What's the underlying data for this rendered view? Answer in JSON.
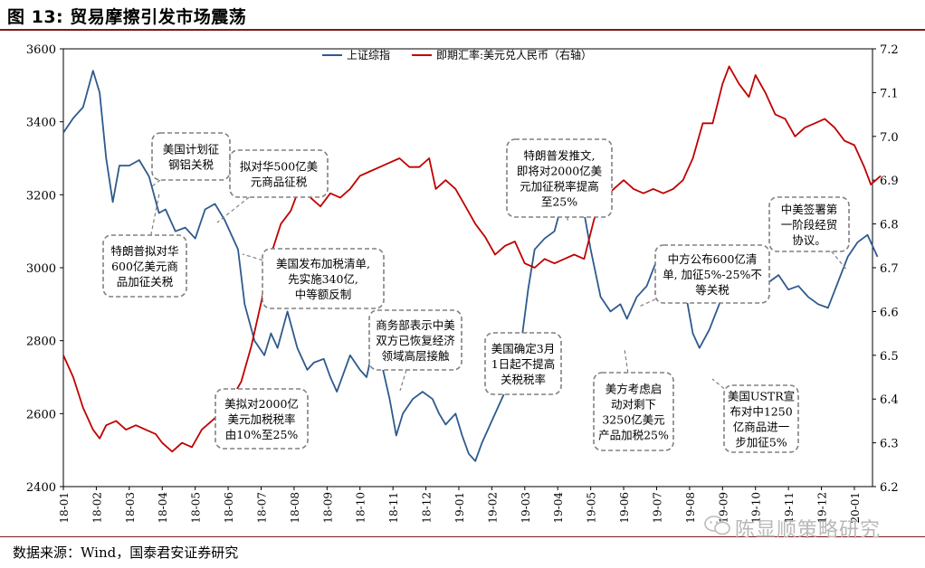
{
  "title": "图 13:  贸易摩擦引发市场震荡",
  "source": "数据来源：Wind，国泰君安证券研究",
  "watermark": "陈显顺策略研究",
  "chart_data": {
    "type": "line",
    "x_tick_labels": [
      "18-01",
      "18-02",
      "18-03",
      "18-04",
      "18-05",
      "18-06",
      "18-07",
      "18-08",
      "18-09",
      "18-10",
      "18-11",
      "18-12",
      "19-01",
      "19-02",
      "19-03",
      "19-04",
      "19-05",
      "19-06",
      "19-07",
      "19-08",
      "19-09",
      "19-10",
      "19-11",
      "19-12",
      "20-01"
    ],
    "left_axis": {
      "min": 2400,
      "max": 3600,
      "ticks": [
        2400,
        2600,
        2800,
        3000,
        3200,
        3400,
        3600
      ]
    },
    "right_axis": {
      "min": 6.2,
      "max": 7.2,
      "ticks": [
        "6.2",
        "6.3",
        "6.4",
        "6.5",
        "6.6",
        "6.7",
        "6.8",
        "6.9",
        "7.0",
        "7.1",
        "7.2"
      ]
    },
    "legend_position": "top",
    "series": [
      {
        "name": "上证综指",
        "axis": "left",
        "color": "#2e5a8c",
        "points": [
          [
            0,
            3370
          ],
          [
            0.3,
            3410
          ],
          [
            0.6,
            3440
          ],
          [
            0.9,
            3540
          ],
          [
            1.1,
            3480
          ],
          [
            1.3,
            3300
          ],
          [
            1.5,
            3180
          ],
          [
            1.7,
            3280
          ],
          [
            2.0,
            3280
          ],
          [
            2.3,
            3295
          ],
          [
            2.6,
            3250
          ],
          [
            2.9,
            3150
          ],
          [
            3.1,
            3160
          ],
          [
            3.4,
            3100
          ],
          [
            3.7,
            3110
          ],
          [
            4.0,
            3080
          ],
          [
            4.3,
            3160
          ],
          [
            4.6,
            3175
          ],
          [
            4.9,
            3130
          ],
          [
            5.1,
            3090
          ],
          [
            5.3,
            3050
          ],
          [
            5.5,
            2900
          ],
          [
            5.8,
            2800
          ],
          [
            6.1,
            2760
          ],
          [
            6.3,
            2820
          ],
          [
            6.5,
            2780
          ],
          [
            6.8,
            2880
          ],
          [
            7.1,
            2780
          ],
          [
            7.4,
            2720
          ],
          [
            7.6,
            2740
          ],
          [
            7.9,
            2750
          ],
          [
            8.1,
            2700
          ],
          [
            8.3,
            2660
          ],
          [
            8.5,
            2710
          ],
          [
            8.7,
            2760
          ],
          [
            9.0,
            2720
          ],
          [
            9.2,
            2700
          ],
          [
            9.4,
            2780
          ],
          [
            9.7,
            2720
          ],
          [
            9.9,
            2640
          ],
          [
            10.1,
            2540
          ],
          [
            10.3,
            2600
          ],
          [
            10.6,
            2640
          ],
          [
            10.9,
            2660
          ],
          [
            11.2,
            2640
          ],
          [
            11.4,
            2600
          ],
          [
            11.6,
            2570
          ],
          [
            11.9,
            2600
          ],
          [
            12.1,
            2540
          ],
          [
            12.3,
            2490
          ],
          [
            12.5,
            2470
          ],
          [
            12.7,
            2520
          ],
          [
            13.0,
            2580
          ],
          [
            13.3,
            2640
          ],
          [
            13.6,
            2700
          ],
          [
            13.9,
            2800
          ],
          [
            14.1,
            2940
          ],
          [
            14.3,
            3050
          ],
          [
            14.6,
            3080
          ],
          [
            14.9,
            3100
          ],
          [
            15.2,
            3200
          ],
          [
            15.5,
            3240
          ],
          [
            15.8,
            3150
          ],
          [
            16.0,
            3050
          ],
          [
            16.3,
            2920
          ],
          [
            16.6,
            2880
          ],
          [
            16.9,
            2900
          ],
          [
            17.1,
            2860
          ],
          [
            17.4,
            2920
          ],
          [
            17.7,
            2950
          ],
          [
            18.0,
            3020
          ],
          [
            18.3,
            2950
          ],
          [
            18.5,
            2920
          ],
          [
            18.7,
            2930
          ],
          [
            18.9,
            2920
          ],
          [
            19.1,
            2820
          ],
          [
            19.3,
            2780
          ],
          [
            19.6,
            2830
          ],
          [
            19.9,
            2900
          ],
          [
            20.2,
            2960
          ],
          [
            20.5,
            3020
          ],
          [
            20.8,
            2980
          ],
          [
            21.1,
            2920
          ],
          [
            21.4,
            2960
          ],
          [
            21.7,
            2980
          ],
          [
            22.0,
            2940
          ],
          [
            22.3,
            2950
          ],
          [
            22.6,
            2920
          ],
          [
            22.9,
            2900
          ],
          [
            23.2,
            2890
          ],
          [
            23.5,
            2960
          ],
          [
            23.8,
            3030
          ],
          [
            24.1,
            3070
          ],
          [
            24.4,
            3090
          ],
          [
            24.7,
            3030
          ]
        ]
      },
      {
        "name": "即期汇率:美元兑人民币（右轴）",
        "axis": "right",
        "color": "#c00000",
        "points": [
          [
            0,
            6.5
          ],
          [
            0.3,
            6.45
          ],
          [
            0.6,
            6.38
          ],
          [
            0.9,
            6.33
          ],
          [
            1.1,
            6.31
          ],
          [
            1.3,
            6.34
          ],
          [
            1.6,
            6.35
          ],
          [
            1.9,
            6.33
          ],
          [
            2.2,
            6.34
          ],
          [
            2.5,
            6.33
          ],
          [
            2.8,
            6.32
          ],
          [
            3.0,
            6.3
          ],
          [
            3.3,
            6.28
          ],
          [
            3.6,
            6.3
          ],
          [
            3.9,
            6.29
          ],
          [
            4.2,
            6.33
          ],
          [
            4.5,
            6.35
          ],
          [
            4.8,
            6.37
          ],
          [
            5.1,
            6.4
          ],
          [
            5.4,
            6.44
          ],
          [
            5.7,
            6.52
          ],
          [
            6.0,
            6.62
          ],
          [
            6.3,
            6.73
          ],
          [
            6.6,
            6.8
          ],
          [
            6.9,
            6.83
          ],
          [
            7.2,
            6.89
          ],
          [
            7.5,
            6.86
          ],
          [
            7.8,
            6.84
          ],
          [
            8.1,
            6.87
          ],
          [
            8.4,
            6.86
          ],
          [
            8.7,
            6.88
          ],
          [
            9.0,
            6.91
          ],
          [
            9.3,
            6.92
          ],
          [
            9.6,
            6.93
          ],
          [
            9.9,
            6.94
          ],
          [
            10.2,
            6.95
          ],
          [
            10.5,
            6.93
          ],
          [
            10.8,
            6.93
          ],
          [
            11.1,
            6.95
          ],
          [
            11.3,
            6.88
          ],
          [
            11.6,
            6.9
          ],
          [
            11.9,
            6.88
          ],
          [
            12.2,
            6.84
          ],
          [
            12.5,
            6.8
          ],
          [
            12.8,
            6.77
          ],
          [
            13.1,
            6.73
          ],
          [
            13.4,
            6.75
          ],
          [
            13.7,
            6.76
          ],
          [
            14.0,
            6.71
          ],
          [
            14.3,
            6.7
          ],
          [
            14.6,
            6.72
          ],
          [
            14.9,
            6.71
          ],
          [
            15.2,
            6.72
          ],
          [
            15.5,
            6.73
          ],
          [
            15.8,
            6.72
          ],
          [
            16.1,
            6.81
          ],
          [
            16.4,
            6.86
          ],
          [
            16.7,
            6.88
          ],
          [
            17.0,
            6.9
          ],
          [
            17.3,
            6.88
          ],
          [
            17.6,
            6.87
          ],
          [
            17.9,
            6.88
          ],
          [
            18.2,
            6.87
          ],
          [
            18.5,
            6.88
          ],
          [
            18.8,
            6.9
          ],
          [
            19.1,
            6.95
          ],
          [
            19.4,
            7.03
          ],
          [
            19.7,
            7.03
          ],
          [
            20.0,
            7.12
          ],
          [
            20.2,
            7.16
          ],
          [
            20.5,
            7.12
          ],
          [
            20.8,
            7.09
          ],
          [
            21.0,
            7.14
          ],
          [
            21.3,
            7.1
          ],
          [
            21.6,
            7.05
          ],
          [
            21.9,
            7.04
          ],
          [
            22.2,
            7.0
          ],
          [
            22.5,
            7.02
          ],
          [
            22.8,
            7.03
          ],
          [
            23.1,
            7.04
          ],
          [
            23.4,
            7.02
          ],
          [
            23.7,
            6.99
          ],
          [
            24.0,
            6.98
          ],
          [
            24.3,
            6.93
          ],
          [
            24.5,
            6.89
          ],
          [
            24.8,
            6.91
          ]
        ]
      }
    ],
    "annotations": [
      {
        "lines": [
          "美国计划征",
          "钢铝关税"
        ]
      },
      {
        "lines": [
          "拟对华500亿美",
          "元商品征税"
        ]
      },
      {
        "lines": [
          "特朗普拟对华",
          "600亿美元商",
          "品加征关税"
        ]
      },
      {
        "lines": [
          "美国发布加税清单,",
          "先实施340亿,",
          "中等额反制"
        ]
      },
      {
        "lines": [
          "美拟对2000亿",
          "美元加税税率",
          "由10%至25%"
        ]
      },
      {
        "lines": [
          "商务部表示中美",
          "双方已恢复经济",
          "领域高层接触"
        ]
      },
      {
        "lines": [
          "特朗普发推文,",
          "即将对2000亿美",
          "元加征税率提高",
          "至25%"
        ]
      },
      {
        "lines": [
          "美国确定3月",
          "1日起不提高",
          "关税税率"
        ]
      },
      {
        "lines": [
          "美方考虑启",
          "动对剩下",
          "3250亿美元",
          "产品加税25%"
        ]
      },
      {
        "lines": [
          "中方公布600亿清",
          "单, 加征5%-25%不",
          "等关税"
        ]
      },
      {
        "lines": [
          "美国USTR宣",
          "布对中1250",
          "亿商品进一",
          "步加征5%"
        ]
      },
      {
        "lines": [
          "中美签署第",
          "一阶段经贸",
          "协议。"
        ]
      }
    ]
  }
}
